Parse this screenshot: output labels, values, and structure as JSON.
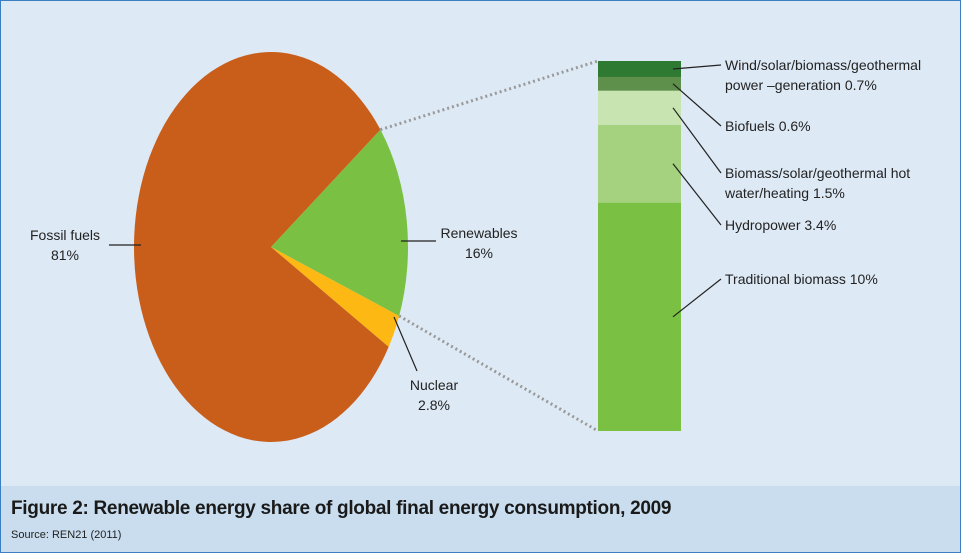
{
  "title": "Figure 2: Renewable energy share of global final energy consumption, 2009",
  "source": "Source: REN21 (2011)",
  "chart_data": [
    {
      "type": "pie",
      "categories": [
        "Renewables",
        "Nuclear",
        "Fossil fuels"
      ],
      "values": [
        16,
        2.8,
        81
      ],
      "value_labels": [
        "16%",
        "2.8%",
        "81%"
      ],
      "colors": [
        "#7ac143",
        "#fdb813",
        "#c95e1b"
      ]
    },
    {
      "type": "stacked_bar",
      "series": [
        {
          "name": "Traditional biomass",
          "color": "#7ac143",
          "values": [
            10
          ],
          "value_labels": [
            "10%"
          ]
        },
        {
          "name": "Hydropower",
          "color": "#a4d27f",
          "values": [
            3.4
          ],
          "value_labels": [
            "3.4%"
          ]
        },
        {
          "name": "Biomass/solar/geothermal hot water/heating",
          "color": "#c7e4b1",
          "values": [
            1.5
          ],
          "value_labels": [
            "1.5%"
          ]
        },
        {
          "name": "Biofuels",
          "color": "#5e8f4b",
          "values": [
            0.6
          ],
          "value_labels": [
            "0.6%"
          ]
        },
        {
          "name": "Wind/solar/biomass/geothermal power –generation",
          "color": "#2f7a33",
          "values": [
            0.7
          ],
          "value_labels": [
            "0.7%"
          ]
        }
      ]
    }
  ]
}
